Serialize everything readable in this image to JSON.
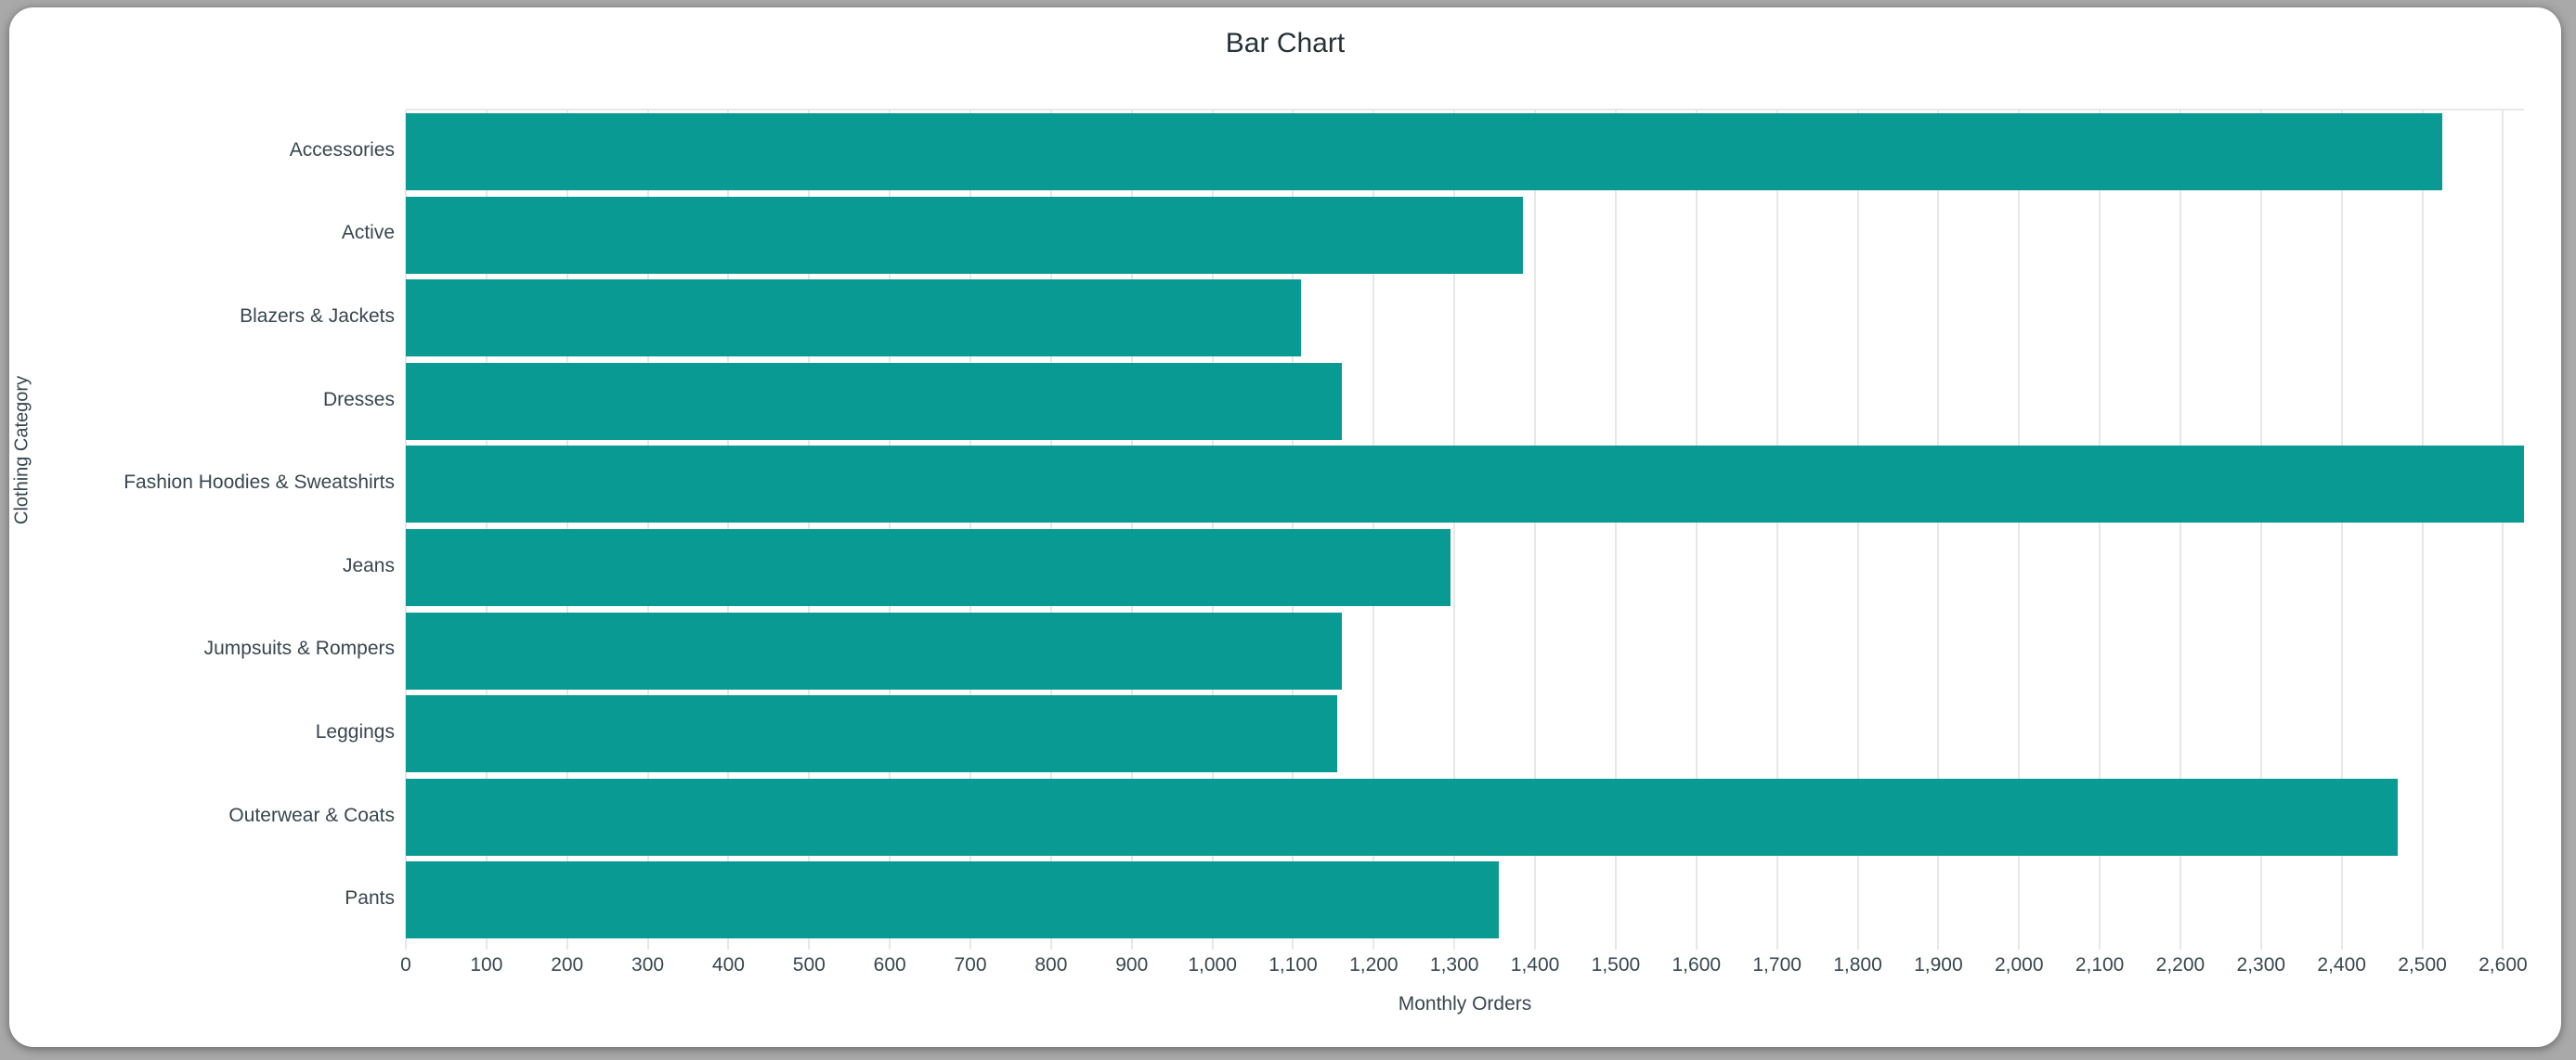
{
  "window": {
    "background_color": "#a9a9a9",
    "card_color": "#ffffff"
  },
  "chart_data": {
    "type": "bar",
    "orientation": "horizontal",
    "title": "Bar Chart",
    "xlabel": "Monthly Orders",
    "ylabel": "Clothing Category",
    "categories": [
      "Accessories",
      "Active",
      "Blazers & Jackets",
      "Dresses",
      "Fashion Hoodies & Sweatshirts",
      "Jeans",
      "Jumpsuits & Rompers",
      "Leggings",
      "Outerwear & Coats",
      "Pants"
    ],
    "values": [
      2525,
      1385,
      1110,
      1160,
      2626,
      1295,
      1160,
      1155,
      2470,
      1355
    ],
    "xlim": [
      0,
      2626
    ],
    "xtick_start": 0,
    "xtick_step": 100,
    "xtick_end": 2600,
    "bar_color": "#0a9a94",
    "grid": true,
    "gridline_color": "#e7e7e7",
    "tick_text_color": "#37474f",
    "title_color": "#263238",
    "legend": false
  }
}
